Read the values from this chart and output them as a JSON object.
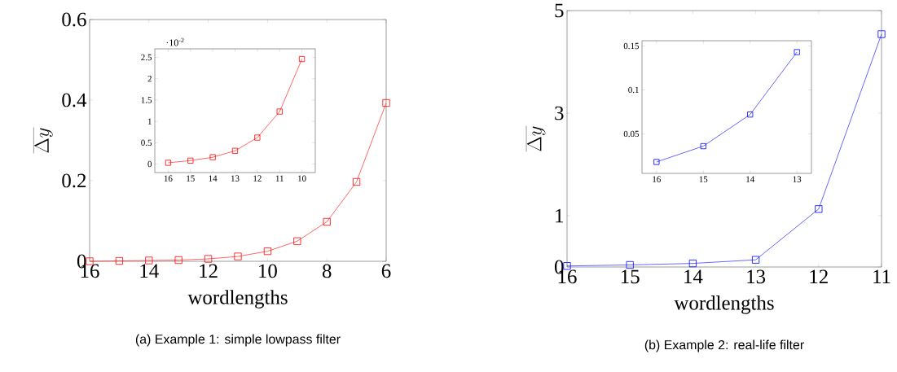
{
  "chart_data": [
    {
      "type": "line",
      "title": "(a) Example 1: simple lowpass filter",
      "xlabel": "wordlengths",
      "ylabel": "\\overline{\\Delta y}",
      "x": [
        16,
        15,
        14,
        13,
        12,
        11,
        10,
        9,
        8,
        7,
        6
      ],
      "values": [
        0,
        0.001,
        0.002,
        0.003,
        0.006,
        0.012,
        0.025,
        0.05,
        0.098,
        0.197,
        0.393
      ],
      "color": "#ff0000",
      "marker": "square",
      "line_style": "solid",
      "xlim": [
        16,
        6
      ],
      "ylim": [
        0,
        0.6
      ],
      "xticks": [
        16,
        14,
        12,
        10,
        8,
        6
      ],
      "yticks": [
        0,
        0.2,
        0.4,
        0.6
      ]
    },
    {
      "type": "line",
      "annotations": [
        "·10$^{-2}$"
      ],
      "x": [
        16,
        15,
        14,
        13,
        12,
        11,
        10
      ],
      "values": [
        0.03,
        0.08,
        0.16,
        0.31,
        0.62,
        1.23,
        2.46
      ],
      "color": "#ff0000",
      "marker": "square",
      "line_style": "solid",
      "xlim": [
        16.6,
        9.4
      ],
      "ylim": [
        -0.2,
        2.7
      ],
      "xticks": [
        16,
        15,
        14,
        13,
        12,
        11,
        10
      ],
      "yticks": [
        0,
        0.5,
        1,
        1.5,
        2,
        2.5
      ]
    },
    {
      "type": "line",
      "title": "(b) Example 2: real-life filter",
      "xlabel": "wordlengths",
      "ylabel": "\\overline{\\Delta y}",
      "x": [
        16,
        15,
        14,
        13,
        12,
        11
      ],
      "values": [
        0.02,
        0.04,
        0.07,
        0.14,
        1.13,
        4.54
      ],
      "color": "#0000ff",
      "marker": "square",
      "line_style": "solid",
      "xlim": [
        16,
        11
      ],
      "ylim": [
        0,
        5
      ],
      "xticks": [
        16,
        15,
        14,
        13,
        12,
        11
      ],
      "yticks": [
        0,
        1,
        3,
        5
      ]
    },
    {
      "type": "line",
      "x": [
        16,
        15,
        14,
        13
      ],
      "values": [
        0.018,
        0.036,
        0.072,
        0.143
      ],
      "color": "#0000ff",
      "marker": "square",
      "line_style": "solid",
      "xlim": [
        16.31,
        12.69
      ],
      "ylim": [
        0.005,
        0.156
      ],
      "xticks": [
        16,
        15,
        14,
        13
      ],
      "yticks": [
        0.05,
        0.1,
        0.15
      ]
    }
  ]
}
